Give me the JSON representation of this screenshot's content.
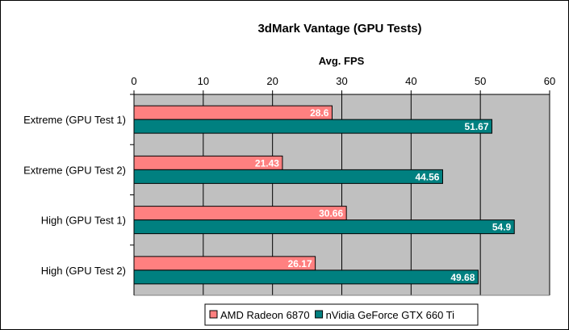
{
  "chart_data": {
    "type": "bar",
    "orientation": "horizontal",
    "title": "3dMark Vantage (GPU Tests)",
    "xlabel": "Avg. FPS",
    "ylabel": "",
    "xlim": [
      0,
      60
    ],
    "ticks": [
      0,
      10,
      20,
      30,
      40,
      50,
      60
    ],
    "tick_labels": [
      "0",
      "10",
      "20",
      "30",
      "40",
      "50",
      "60"
    ],
    "grid": true,
    "legend_position": "bottom",
    "categories": [
      "Extreme (GPU Test 1)",
      "Extreme (GPU Test 2)",
      "High (GPU Test 1)",
      "High (GPU Test 2)"
    ],
    "series": [
      {
        "name": "AMD Radeon 6870",
        "color": "#FF8080",
        "values": [
          28.6,
          21.43,
          30.66,
          26.17
        ],
        "labels": [
          "28.6",
          "21.43",
          "30.66",
          "26.17"
        ]
      },
      {
        "name": "nVidia GeForce GTX 660 Ti",
        "color": "#008080",
        "values": [
          51.67,
          44.56,
          54.9,
          49.68
        ],
        "labels": [
          "51.67",
          "44.56",
          "54.9",
          "49.68"
        ]
      }
    ],
    "plot_background": "#C0C0C0"
  }
}
